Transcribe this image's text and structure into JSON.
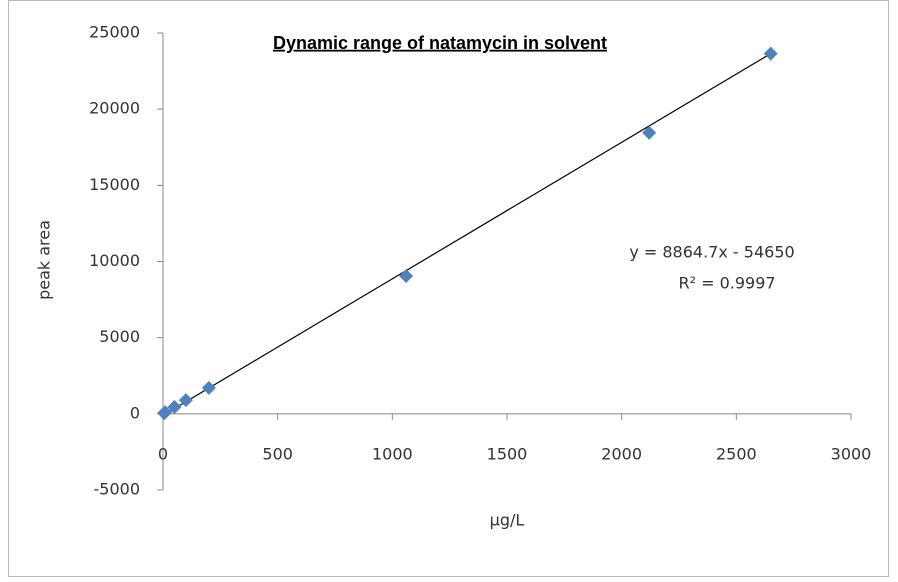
{
  "chart_data": {
    "type": "scatter",
    "title": "Dynamic range of natamycin  in solvent",
    "x_label": "µg/L",
    "y_label": "peak area",
    "annotations": [
      "y = 8864.7x - 54650",
      "R² = 0.9997"
    ],
    "x": [
      5,
      10,
      50,
      100,
      200,
      1060,
      2120,
      2650
    ],
    "values": [
      50,
      100,
      450,
      900,
      1700,
      9050,
      18450,
      23650
    ],
    "color": "#4f81bd",
    "trendline": {
      "x": [
        0,
        2650
      ],
      "values": [
        -100,
        23650
      ],
      "color": "#000000"
    },
    "xlim": [
      0,
      3000
    ],
    "xticks": [
      0,
      500,
      1000,
      1500,
      2000,
      2500,
      3000
    ],
    "ylim": [
      -5000,
      25000
    ],
    "yticks": [
      -5000,
      0,
      5000,
      10000,
      15000,
      20000,
      25000
    ],
    "grid": false
  }
}
